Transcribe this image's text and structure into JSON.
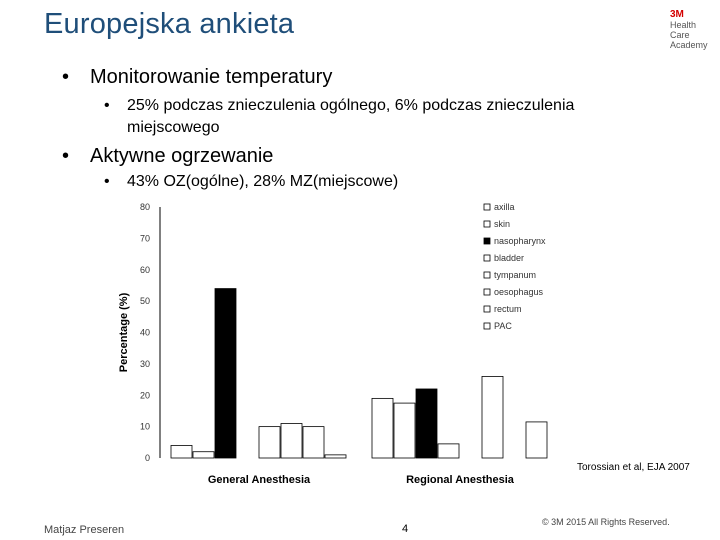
{
  "slide": {
    "title": "Europejska ankieta",
    "logo": {
      "brand": "3M",
      "lines": [
        "Health",
        "Care",
        "Academy"
      ]
    },
    "bullets": [
      {
        "text": "Monitorowanie temperatury",
        "sub": [
          "25% podczas znieczulenia ogólnego, 6% podczas znieczulenia",
          "miejscowego"
        ]
      },
      {
        "text": "Aktywne ogrzewanie",
        "sub": [
          "43% OZ(ogólne), 28% MZ(miejscowe)"
        ]
      }
    ],
    "citation": "Torossian et al, EJA 2007",
    "footer": {
      "author": "Matjaz Preseren",
      "page": "4",
      "copyright": "© 3M 2015 All Rights Reserved."
    }
  },
  "chart_data": {
    "type": "bar",
    "xlabel": "",
    "ylabel": "Percentage (%)",
    "ylim": [
      0,
      80
    ],
    "yticks": [
      0,
      10,
      20,
      30,
      40,
      50,
      60,
      70,
      80
    ],
    "categories": [
      "General Anesthesia",
      "Regional Anesthesia"
    ],
    "series": [
      {
        "name": "axilla",
        "fill": "#ffffff",
        "values": [
          4,
          19
        ]
      },
      {
        "name": "skin",
        "fill": "#ffffff",
        "values": [
          2,
          17.5
        ]
      },
      {
        "name": "nasopharynx",
        "fill": "#000000",
        "values": [
          54,
          22
        ]
      },
      {
        "name": "bladder",
        "fill": "#ffffff",
        "values": [
          0,
          4.5
        ]
      },
      {
        "name": "tympanum",
        "fill": "#ffffff",
        "values": [
          10,
          0
        ]
      },
      {
        "name": "oesophagus",
        "fill": "#ffffff",
        "values": [
          11,
          26
        ]
      },
      {
        "name": "rectum",
        "fill": "#ffffff",
        "values": [
          10,
          0
        ]
      },
      {
        "name": "PAC",
        "fill": "#ffffff",
        "values": [
          1,
          11.5
        ]
      }
    ]
  }
}
